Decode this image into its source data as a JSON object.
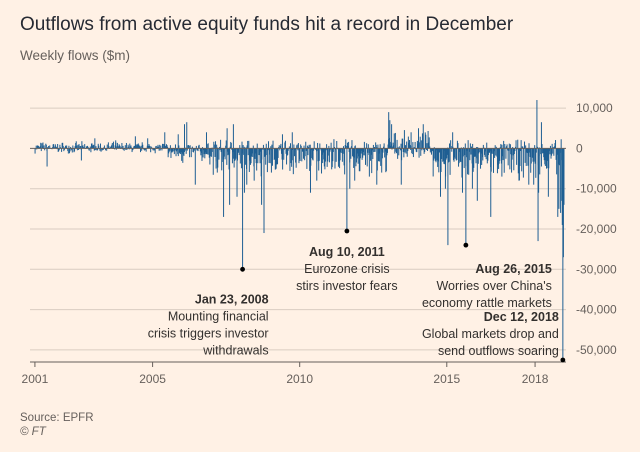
{
  "title": "Outflows from active equity funds hit a record in December",
  "subtitle": "Weekly flows ($m)",
  "source": "Source: EPFR",
  "copyright": "© FT",
  "colors": {
    "background": "#fff1e5",
    "bars": "#1f5f93",
    "grid": "#d9ccc1",
    "zero_line": "#66605c",
    "text": "#33302e",
    "muted": "#66605c"
  },
  "chart_data": {
    "type": "bar",
    "title": "Outflows from active equity funds hit a record in December",
    "ylabel": "Weekly flows ($m)",
    "ylim": [
      -53000,
      13000
    ],
    "yticks": [
      10000,
      0,
      -10000,
      -20000,
      -30000,
      -40000,
      -50000
    ],
    "ytick_labels": [
      "10,000",
      "0",
      "-10,000",
      "-20,000",
      "-30,000",
      "-40,000",
      "-50,000"
    ],
    "xlim": [
      "2000-11-01",
      "2019-01-20"
    ],
    "xtick_labels": [
      "2001",
      "2005",
      "2010",
      "2015",
      "2018"
    ],
    "xtick_years": [
      2001,
      2005,
      2010,
      2015,
      2018
    ],
    "grid": true,
    "series": [
      {
        "points": [
          [
            "2001-06-01",
            -4500
          ],
          [
            "2002-08-01",
            -3000
          ],
          [
            "2003-01-15",
            2500
          ],
          [
            "2003-10-01",
            2000
          ],
          [
            "2004-06-01",
            3000
          ],
          [
            "2004-11-01",
            2500
          ],
          [
            "2005-06-01",
            4000
          ],
          [
            "2005-11-15",
            3500
          ],
          [
            "2006-02-01",
            6000
          ],
          [
            "2006-03-01",
            6500
          ],
          [
            "2006-06-15",
            -9000
          ],
          [
            "2006-11-01",
            4000
          ],
          [
            "2007-02-28",
            -5000
          ],
          [
            "2007-03-15",
            -6000
          ],
          [
            "2007-06-01",
            -17000
          ],
          [
            "2007-07-15",
            5000
          ],
          [
            "2007-08-15",
            -14000
          ],
          [
            "2007-10-01",
            6000
          ],
          [
            "2007-11-15",
            -12000
          ],
          [
            "2008-01-23",
            -30000
          ],
          [
            "2008-02-15",
            -11000
          ],
          [
            "2008-03-15",
            -9000
          ],
          [
            "2008-06-15",
            -8000
          ],
          [
            "2008-09-15",
            -14000
          ],
          [
            "2008-10-15",
            -21000
          ],
          [
            "2009-01-15",
            -6000
          ],
          [
            "2009-03-15",
            -5000
          ],
          [
            "2009-06-01",
            3500
          ],
          [
            "2009-10-01",
            4000
          ],
          [
            "2010-05-15",
            -11000
          ],
          [
            "2010-08-01",
            -8000
          ],
          [
            "2011-03-15",
            -5000
          ],
          [
            "2011-08-10",
            -20500
          ],
          [
            "2011-09-15",
            -10000
          ],
          [
            "2011-11-15",
            -8000
          ],
          [
            "2012-05-15",
            -7000
          ],
          [
            "2012-08-15",
            -9000
          ],
          [
            "2012-10-15",
            -6000
          ],
          [
            "2013-01-10",
            9000
          ],
          [
            "2013-01-24",
            7000
          ],
          [
            "2013-02-15",
            6000
          ],
          [
            "2013-06-15",
            -9000
          ],
          [
            "2013-10-15",
            4000
          ],
          [
            "2014-01-15",
            5000
          ],
          [
            "2014-03-15",
            6000
          ],
          [
            "2014-10-15",
            -12000
          ],
          [
            "2014-12-15",
            -10000
          ],
          [
            "2015-01-15",
            -24000
          ],
          [
            "2015-03-15",
            4000
          ],
          [
            "2015-07-15",
            -11000
          ],
          [
            "2015-08-26",
            -24000
          ],
          [
            "2015-11-15",
            -10000
          ],
          [
            "2016-01-15",
            -13000
          ],
          [
            "2016-06-30",
            -17000
          ],
          [
            "2016-11-15",
            -7000
          ],
          [
            "2017-03-15",
            -6000
          ],
          [
            "2017-06-15",
            -8000
          ],
          [
            "2017-10-15",
            -9000
          ],
          [
            "2017-12-15",
            -9000
          ],
          [
            "2018-01-24",
            12000
          ],
          [
            "2018-02-07",
            -23000
          ],
          [
            "2018-02-14",
            -11000
          ],
          [
            "2018-03-21",
            6500
          ],
          [
            "2018-06-15",
            -12000
          ],
          [
            "2018-10-10",
            -17000
          ],
          [
            "2018-10-24",
            -15000
          ],
          [
            "2018-11-14",
            -16000
          ],
          [
            "2018-11-28",
            -13000
          ],
          [
            "2018-12-05",
            -19000
          ],
          [
            "2018-12-12",
            -52500
          ],
          [
            "2018-12-19",
            -27000
          ],
          [
            "2018-12-26",
            -14000
          ]
        ]
      }
    ],
    "annotations": [
      {
        "x": "2008-01-23",
        "y": -30000,
        "date": "Jan 23, 2008",
        "lines": [
          "Mounting financial",
          "crisis triggers investor",
          "withdrawals"
        ]
      },
      {
        "x": "2011-08-10",
        "y": -20500,
        "date": "Aug 10, 2011",
        "lines": [
          "Eurozone crisis",
          "stirs investor fears"
        ]
      },
      {
        "x": "2015-08-26",
        "y": -24000,
        "date": "Aug 26, 2015",
        "lines": [
          "Worries over China's",
          "economy rattle markets"
        ]
      },
      {
        "x": "2018-12-12",
        "y": -52500,
        "date": "Dec 12, 2018",
        "lines": [
          "Global markets drop and",
          "send outflows soaring"
        ]
      }
    ]
  }
}
